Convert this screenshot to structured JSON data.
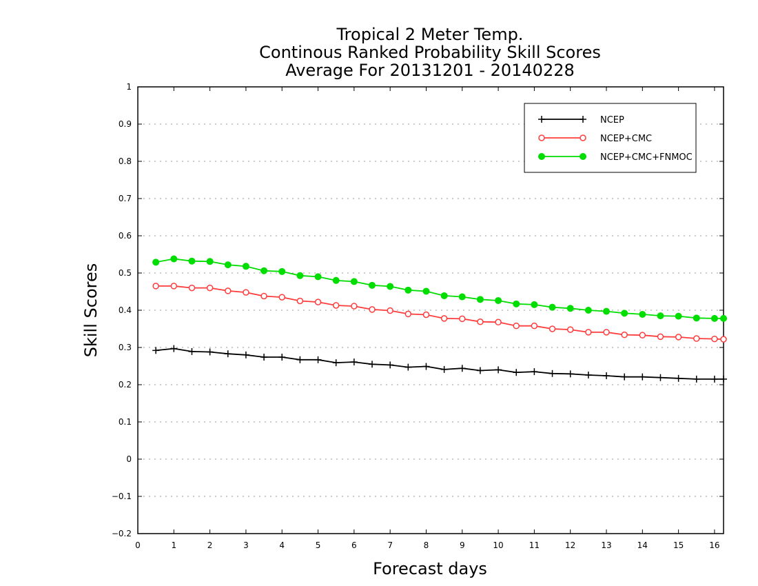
{
  "chart_data": {
    "type": "line",
    "title": [
      "Tropical 2 Meter Temp.",
      "Continous Ranked Probability Skill Scores",
      "Average For 20131201 - 20140228"
    ],
    "xlabel": "Forecast days",
    "ylabel": "Skill Scores",
    "xlim": [
      0,
      16.25
    ],
    "ylim": [
      -0.2,
      1.0
    ],
    "xticks": [
      "0",
      "1",
      "2",
      "3",
      "4",
      "5",
      "6",
      "7",
      "8",
      "9",
      "10",
      "11",
      "12",
      "13",
      "14",
      "15",
      "16"
    ],
    "yticks": [
      "−0.2",
      "−0.1",
      "0",
      "0.1",
      "0.2",
      "0.3",
      "0.4",
      "0.5",
      "0.6",
      "0.7",
      "0.8",
      "0.9",
      "1"
    ],
    "grid": "horizontal dotted",
    "legend_position": "top-right",
    "x": [
      0.5,
      1.0,
      1.5,
      2.0,
      2.5,
      3.0,
      3.5,
      4.0,
      4.5,
      5.0,
      5.5,
      6.0,
      6.5,
      7.0,
      7.5,
      8.0,
      8.5,
      9.0,
      9.5,
      10.0,
      10.5,
      11.0,
      11.5,
      12.0,
      12.5,
      13.0,
      13.5,
      14.0,
      14.5,
      15.0,
      15.5,
      16.0,
      16.25
    ],
    "series": [
      {
        "name": "NCEP",
        "color": "#000000",
        "marker": "plus",
        "values": [
          0.292,
          0.297,
          0.289,
          0.288,
          0.283,
          0.28,
          0.274,
          0.274,
          0.267,
          0.267,
          0.259,
          0.261,
          0.255,
          0.253,
          0.247,
          0.249,
          0.241,
          0.244,
          0.238,
          0.24,
          0.233,
          0.235,
          0.23,
          0.229,
          0.226,
          0.224,
          0.221,
          0.221,
          0.219,
          0.217,
          0.215,
          0.215,
          0.215
        ]
      },
      {
        "name": "NCEP+CMC",
        "color": "#ff3b3b",
        "marker": "open-circle",
        "values": [
          0.465,
          0.465,
          0.46,
          0.46,
          0.452,
          0.448,
          0.438,
          0.435,
          0.425,
          0.422,
          0.413,
          0.411,
          0.402,
          0.399,
          0.39,
          0.388,
          0.378,
          0.377,
          0.369,
          0.368,
          0.358,
          0.358,
          0.35,
          0.348,
          0.341,
          0.341,
          0.334,
          0.333,
          0.329,
          0.328,
          0.324,
          0.323,
          0.322
        ]
      },
      {
        "name": "NCEP+CMC+FNMOC",
        "color": "#00dd00",
        "marker": "filled-circle",
        "values": [
          0.529,
          0.538,
          0.532,
          0.531,
          0.522,
          0.518,
          0.506,
          0.504,
          0.493,
          0.49,
          0.48,
          0.477,
          0.467,
          0.464,
          0.454,
          0.451,
          0.439,
          0.436,
          0.429,
          0.426,
          0.417,
          0.415,
          0.408,
          0.405,
          0.4,
          0.397,
          0.392,
          0.389,
          0.385,
          0.384,
          0.379,
          0.378,
          0.378
        ]
      }
    ]
  }
}
